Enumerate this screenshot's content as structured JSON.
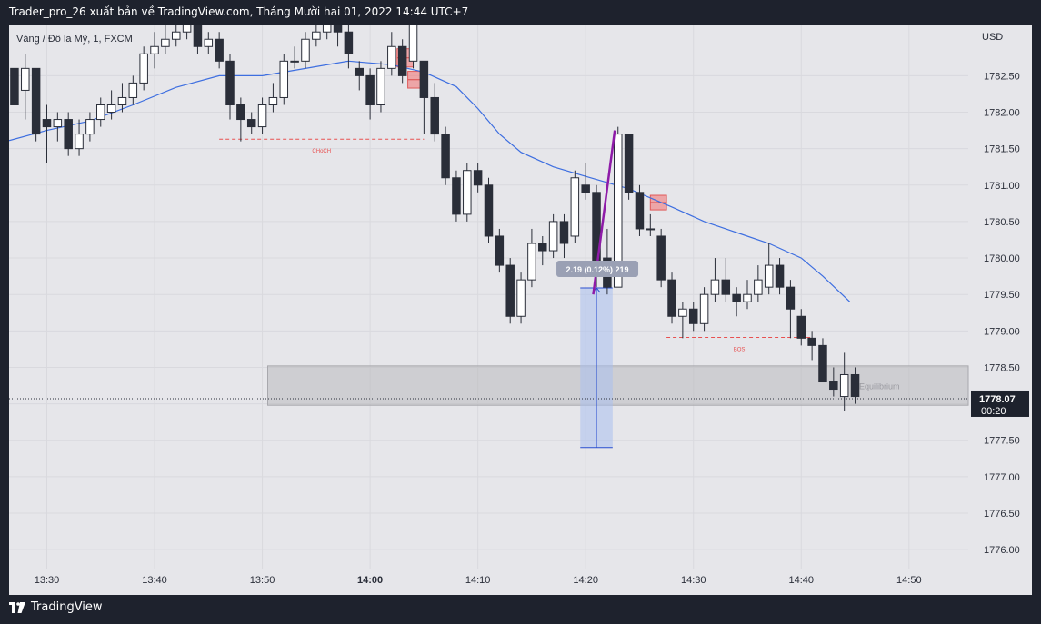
{
  "header": {
    "title": "Trader_pro_26 xuất bản về TradingView.com, Tháng Mười hai 01, 2022 14:44 UTC+7"
  },
  "footer": {
    "brand": "TradingView"
  },
  "colors": {
    "background": "#1e222d",
    "panel": "#e6e6ea",
    "grid": "#d9d9de",
    "bull": "#ffffff",
    "bear": "#2a2e39",
    "ema": "#3d6ee0",
    "supply_zone": "#f27a7a",
    "equilibrium_zone": "#b9b9bd",
    "bos_line": "#e85050",
    "measure_fill": "#a9c0ef",
    "measure_line": "#2a4fd0",
    "impulse": "#8e1ba8"
  },
  "chart_data": {
    "type": "candlestick",
    "symbol_label": "Vàng / Đô la Mỹ, 1, FXCM",
    "currency": "USD",
    "ylim": [
      1775.74,
      1783.19
    ],
    "y_ticks": [
      "1782.50",
      "1782.00",
      "1781.50",
      "1781.00",
      "1780.50",
      "1780.00",
      "1779.50",
      "1779.00",
      "1778.50",
      "1778.00",
      "1777.50",
      "1777.00",
      "1776.50",
      "1776.00"
    ],
    "x_ticks": [
      {
        "label": "13:30",
        "minute": 0
      },
      {
        "label": "13:40",
        "minute": 10
      },
      {
        "label": "13:50",
        "minute": 20
      },
      {
        "label": "14:00",
        "minute": 30,
        "bold": true
      },
      {
        "label": "14:10",
        "minute": 40
      },
      {
        "label": "14:20",
        "minute": 50
      },
      {
        "label": "14:30",
        "minute": 60
      },
      {
        "label": "14:40",
        "minute": 70
      },
      {
        "label": "14:50",
        "minute": 80
      }
    ],
    "x_range_minutes": [
      -3.5,
      85.5
    ],
    "candles": [
      [
        -3,
        1782.6,
        1782.1,
        1782.4,
        1782.1
      ],
      [
        -2,
        1782.3,
        1782.6,
        1782.8,
        1781.9
      ],
      [
        -1,
        1782.6,
        1781.7,
        1782.6,
        1781.6
      ],
      [
        0,
        1781.9,
        1781.8,
        1782.1,
        1781.3
      ],
      [
        1,
        1781.8,
        1781.9,
        1782.0,
        1781.6
      ],
      [
        2,
        1781.9,
        1781.5,
        1782.0,
        1781.4
      ],
      [
        3,
        1781.5,
        1781.7,
        1781.9,
        1781.4
      ],
      [
        4,
        1781.7,
        1781.9,
        1782.0,
        1781.6
      ],
      [
        5,
        1781.9,
        1782.1,
        1782.2,
        1781.8
      ],
      [
        6,
        1782.0,
        1782.1,
        1782.3,
        1781.9
      ],
      [
        7,
        1782.1,
        1782.2,
        1782.4,
        1782.0
      ],
      [
        8,
        1782.2,
        1782.4,
        1782.5,
        1782.1
      ],
      [
        9,
        1782.4,
        1782.8,
        1782.9,
        1782.3
      ],
      [
        10,
        1782.8,
        1782.9,
        1783.1,
        1782.6
      ],
      [
        11,
        1782.9,
        1783.0,
        1783.2,
        1782.8
      ],
      [
        12,
        1783.0,
        1783.1,
        1783.2,
        1782.9
      ],
      [
        13,
        1783.1,
        1783.2,
        1783.3,
        1783.0
      ],
      [
        14,
        1783.2,
        1782.9,
        1783.3,
        1782.8
      ],
      [
        15,
        1782.9,
        1783.0,
        1783.1,
        1782.8
      ],
      [
        16,
        1783.0,
        1782.7,
        1783.1,
        1782.6
      ],
      [
        17,
        1782.7,
        1782.1,
        1782.8,
        1781.9
      ],
      [
        18,
        1782.1,
        1781.9,
        1782.2,
        1781.6
      ],
      [
        19,
        1781.9,
        1781.8,
        1782.0,
        1781.7
      ],
      [
        20,
        1781.8,
        1782.1,
        1782.2,
        1781.7
      ],
      [
        21,
        1782.1,
        1782.2,
        1782.4,
        1782.0
      ],
      [
        22,
        1782.2,
        1782.7,
        1782.8,
        1782.1
      ],
      [
        23,
        1782.7,
        1782.7,
        1782.9,
        1782.6
      ],
      [
        24,
        1782.7,
        1783.0,
        1783.1,
        1782.6
      ],
      [
        25,
        1783.0,
        1783.1,
        1783.3,
        1782.9
      ],
      [
        26,
        1783.1,
        1783.2,
        1783.3,
        1783.0
      ],
      [
        27,
        1783.2,
        1783.1,
        1783.3,
        1782.9
      ],
      [
        28,
        1783.1,
        1782.8,
        1783.2,
        1782.6
      ],
      [
        29,
        1782.6,
        1782.5,
        1782.7,
        1782.3
      ],
      [
        30,
        1782.5,
        1782.1,
        1782.6,
        1781.9
      ],
      [
        31,
        1782.1,
        1782.6,
        1782.7,
        1782.0
      ],
      [
        32,
        1782.6,
        1782.9,
        1783.1,
        1782.5
      ],
      [
        33,
        1782.9,
        1782.5,
        1783.0,
        1782.4
      ],
      [
        34,
        1782.7,
        1783.2,
        1783.3,
        1782.6
      ],
      [
        35,
        1782.7,
        1782.2,
        1782.7,
        1781.7
      ],
      [
        36,
        1782.2,
        1781.7,
        1782.4,
        1781.6
      ],
      [
        37,
        1781.7,
        1781.1,
        1781.8,
        1781.0
      ],
      [
        38,
        1781.1,
        1780.6,
        1781.2,
        1780.5
      ],
      [
        39,
        1780.6,
        1781.2,
        1781.3,
        1780.5
      ],
      [
        40,
        1781.2,
        1781.0,
        1781.3,
        1780.9
      ],
      [
        41,
        1781.0,
        1780.3,
        1781.1,
        1780.2
      ],
      [
        42,
        1780.3,
        1779.9,
        1780.4,
        1779.8
      ],
      [
        43,
        1779.9,
        1779.2,
        1780.0,
        1779.1
      ],
      [
        44,
        1779.2,
        1779.7,
        1779.8,
        1779.1
      ],
      [
        45,
        1779.7,
        1780.2,
        1780.4,
        1779.6
      ],
      [
        46,
        1780.2,
        1780.1,
        1780.3,
        1779.9
      ],
      [
        47,
        1780.1,
        1780.5,
        1780.6,
        1780.0
      ],
      [
        48,
        1780.5,
        1780.2,
        1780.6,
        1780.0
      ],
      [
        49,
        1780.3,
        1781.1,
        1781.2,
        1780.2
      ],
      [
        50,
        1781.0,
        1780.9,
        1781.3,
        1780.8
      ],
      [
        51,
        1780.9,
        1779.9,
        1781.0,
        1779.6
      ],
      [
        52,
        1780.0,
        1779.6,
        1780.4,
        1779.5
      ],
      [
        53,
        1779.6,
        1781.7,
        1781.8,
        1779.6
      ],
      [
        54,
        1781.7,
        1780.9,
        1781.7,
        1780.8
      ],
      [
        55,
        1780.9,
        1780.4,
        1781.0,
        1780.3
      ],
      [
        56,
        1780.4,
        1780.4,
        1780.6,
        1780.3
      ],
      [
        57,
        1780.3,
        1779.7,
        1780.4,
        1779.6
      ],
      [
        58,
        1779.7,
        1779.2,
        1779.8,
        1779.1
      ],
      [
        59,
        1779.2,
        1779.3,
        1779.4,
        1778.9
      ],
      [
        60,
        1779.3,
        1779.1,
        1779.4,
        1779.0
      ],
      [
        61,
        1779.1,
        1779.5,
        1779.6,
        1779.0
      ],
      [
        62,
        1779.5,
        1779.7,
        1780.0,
        1779.4
      ],
      [
        63,
        1779.7,
        1779.5,
        1780.0,
        1779.4
      ],
      [
        64,
        1779.5,
        1779.4,
        1779.6,
        1779.2
      ],
      [
        65,
        1779.4,
        1779.5,
        1779.7,
        1779.3
      ],
      [
        66,
        1779.5,
        1779.7,
        1779.9,
        1779.4
      ],
      [
        67,
        1779.6,
        1779.9,
        1780.2,
        1779.5
      ],
      [
        68,
        1779.9,
        1779.6,
        1780.0,
        1779.5
      ],
      [
        69,
        1779.6,
        1779.3,
        1779.7,
        1778.9
      ],
      [
        70,
        1779.2,
        1778.9,
        1779.3,
        1778.8
      ],
      [
        71,
        1778.9,
        1778.8,
        1779.0,
        1778.6
      ],
      [
        72,
        1778.8,
        1778.3,
        1778.9,
        1778.3
      ],
      [
        73,
        1778.3,
        1778.2,
        1778.5,
        1778.1
      ],
      [
        74,
        1778.1,
        1778.4,
        1778.7,
        1777.9
      ],
      [
        75,
        1778.4,
        1778.1,
        1778.5,
        1778.0
      ]
    ],
    "ema": [
      [
        -3.5,
        1781.61
      ],
      [
        0,
        1781.75
      ],
      [
        4,
        1781.88
      ],
      [
        8,
        1782.1
      ],
      [
        12,
        1782.34
      ],
      [
        16,
        1782.5
      ],
      [
        20,
        1782.5
      ],
      [
        24,
        1782.6
      ],
      [
        28,
        1782.7
      ],
      [
        32,
        1782.65
      ],
      [
        35,
        1782.55
      ],
      [
        38,
        1782.35
      ],
      [
        40,
        1782.05
      ],
      [
        42,
        1781.7
      ],
      [
        44,
        1781.45
      ],
      [
        47,
        1781.25
      ],
      [
        50,
        1781.12
      ],
      [
        54,
        1780.95
      ],
      [
        58,
        1780.7
      ],
      [
        61,
        1780.5
      ],
      [
        64,
        1780.35
      ],
      [
        67,
        1780.2
      ],
      [
        70,
        1780.0
      ],
      [
        72,
        1779.75
      ],
      [
        74.5,
        1779.4
      ]
    ],
    "zones": [
      {
        "label": "Equilibrium",
        "x0": 20.5,
        "x1": 85.5,
        "y0": 1778.52,
        "y1": 1777.98,
        "kind": "equilibrium"
      },
      {
        "x0": 32.5,
        "x1": 34,
        "y0": 1782.87,
        "y1": 1782.62,
        "kind": "supply"
      },
      {
        "x0": 33.5,
        "x1": 35,
        "y0": 1782.56,
        "y1": 1782.33,
        "kind": "supply"
      },
      {
        "x0": 56,
        "x1": 57.5,
        "y0": 1780.86,
        "y1": 1780.66,
        "kind": "supply"
      }
    ],
    "levels": [
      {
        "label": "CHoCH",
        "x0": 16,
        "x1": 35,
        "y": 1781.63
      },
      {
        "label": "BOS",
        "x0": 57.5,
        "x1": 71,
        "y": 1778.91
      }
    ],
    "impulse": {
      "x0": 50.7,
      "y0": 1779.5,
      "x1": 52.7,
      "y1": 1781.75
    },
    "measure": {
      "x0": 49.5,
      "x1": 52.5,
      "y_top": 1779.59,
      "y_bot": 1777.4,
      "label": "2.19 (0.12%) 219"
    },
    "last_price": {
      "price": "1778.07",
      "countdown": "00:20",
      "y": 1778.07
    }
  }
}
